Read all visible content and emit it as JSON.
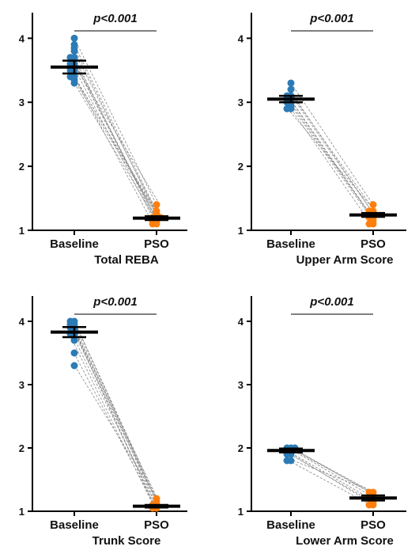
{
  "colors": {
    "baseline": "#2c7bb6",
    "pso": "#ff7f0e",
    "line": "#888888",
    "axis": "#000000"
  },
  "chart_data": [
    {
      "type": "scatter",
      "title": "Total REBA",
      "categories": [
        "Baseline",
        "PSO"
      ],
      "significance": "p<0.001",
      "ylim": [
        1,
        4.4
      ],
      "yticks": [
        1,
        2,
        3,
        4
      ],
      "baseline": {
        "mean": 3.55,
        "error": 0.1,
        "values": [
          4.0,
          3.9,
          3.85,
          3.8,
          3.7,
          3.7,
          3.6,
          3.6,
          3.55,
          3.5,
          3.5,
          3.4,
          3.4,
          3.35,
          3.3
        ]
      },
      "pso": {
        "mean": 1.19,
        "error": 0.03,
        "values": [
          1.4,
          1.3,
          1.25,
          1.2,
          1.2,
          1.2,
          1.15,
          1.15,
          1.1,
          1.1
        ]
      }
    },
    {
      "type": "scatter",
      "title": "Upper Arm Score",
      "categories": [
        "Baseline",
        "PSO"
      ],
      "significance": "p<0.001",
      "ylim": [
        1,
        4.4
      ],
      "yticks": [
        1,
        2,
        3,
        4
      ],
      "baseline": {
        "mean": 3.05,
        "error": 0.05,
        "values": [
          3.3,
          3.2,
          3.1,
          3.1,
          3.05,
          3.0,
          3.0,
          2.95,
          2.9,
          2.9
        ]
      },
      "pso": {
        "mean": 1.24,
        "error": 0.03,
        "values": [
          1.4,
          1.3,
          1.3,
          1.25,
          1.2,
          1.2,
          1.15,
          1.1,
          1.1
        ]
      }
    },
    {
      "type": "scatter",
      "title": "Trunk Score",
      "categories": [
        "Baseline",
        "PSO"
      ],
      "significance": "p<0.001",
      "ylim": [
        1,
        4.4
      ],
      "yticks": [
        1,
        2,
        3,
        4
      ],
      "baseline": {
        "mean": 3.83,
        "error": 0.08,
        "values": [
          4.0,
          4.0,
          3.95,
          3.95,
          3.9,
          3.9,
          3.85,
          3.8,
          3.8,
          3.75,
          3.7,
          3.5,
          3.3
        ]
      },
      "pso": {
        "mean": 1.08,
        "error": 0.02,
        "values": [
          1.2,
          1.15,
          1.1,
          1.1,
          1.05,
          1.05
        ]
      }
    },
    {
      "type": "scatter",
      "title": "Lower Arm Score",
      "categories": [
        "Baseline",
        "PSO"
      ],
      "significance": "p<0.001",
      "ylim": [
        1,
        4.4
      ],
      "yticks": [
        1,
        2,
        3,
        4
      ],
      "baseline": {
        "mean": 1.96,
        "error": 0.03,
        "values": [
          2.0,
          2.0,
          2.0,
          1.95,
          1.95,
          1.9,
          1.9,
          1.8,
          1.8
        ]
      },
      "pso": {
        "mean": 1.21,
        "error": 0.04,
        "values": [
          1.3,
          1.3,
          1.25,
          1.2,
          1.2,
          1.15,
          1.1,
          1.1
        ]
      }
    }
  ]
}
